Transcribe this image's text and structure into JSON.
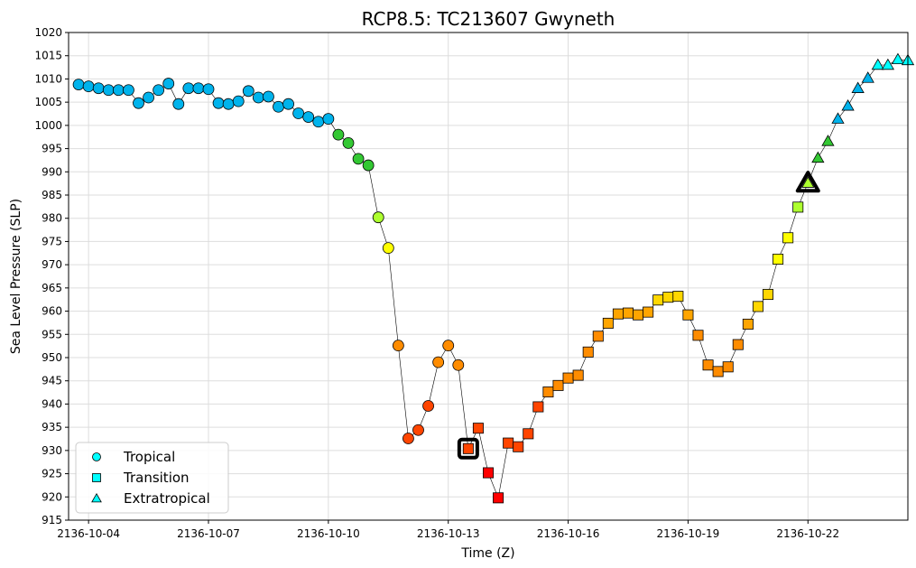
{
  "chart_data": {
    "type": "scatter",
    "title": "RCP8.5: TC213607 Gwyneth",
    "xlabel": "Time (Z)",
    "ylabel": "Sea Level Pressure (SLP)",
    "x_ticks": [
      "2136-10-04",
      "2136-10-07",
      "2136-10-10",
      "2136-10-13",
      "2136-10-16",
      "2136-10-19",
      "2136-10-22"
    ],
    "y_ticks": [
      915,
      920,
      925,
      930,
      935,
      940,
      945,
      950,
      955,
      960,
      965,
      970,
      975,
      980,
      985,
      990,
      995,
      1000,
      1005,
      1010,
      1015,
      1020
    ],
    "ylim": [
      915,
      1020
    ],
    "xlim_days": [
      "2136-10-03T12:00",
      "2136-10-24T12:00"
    ],
    "grid": true,
    "legend_position": "lower-left",
    "legend": [
      {
        "label": "Tropical",
        "marker": "circle"
      },
      {
        "label": "Transition",
        "marker": "square"
      },
      {
        "label": "Extratropical",
        "marker": "triangle"
      }
    ],
    "legend_color": "#00ffff",
    "line_color": "#000000",
    "points": [
      {
        "t": "2136-10-03T18:00",
        "slp": 1008.8,
        "type": "tropical",
        "color": "#00b3ec"
      },
      {
        "t": "2136-10-04T00:00",
        "slp": 1008.4,
        "type": "tropical",
        "color": "#00b3ec"
      },
      {
        "t": "2136-10-04T06:00",
        "slp": 1008.0,
        "type": "tropical",
        "color": "#00b3ec"
      },
      {
        "t": "2136-10-04T12:00",
        "slp": 1007.6,
        "type": "tropical",
        "color": "#00b3ec"
      },
      {
        "t": "2136-10-04T18:00",
        "slp": 1007.6,
        "type": "tropical",
        "color": "#00b3ec"
      },
      {
        "t": "2136-10-05T00:00",
        "slp": 1007.6,
        "type": "tropical",
        "color": "#00b3ec"
      },
      {
        "t": "2136-10-05T06:00",
        "slp": 1004.8,
        "type": "tropical",
        "color": "#00b3ec"
      },
      {
        "t": "2136-10-05T12:00",
        "slp": 1006.0,
        "type": "tropical",
        "color": "#00b3ec"
      },
      {
        "t": "2136-10-05T18:00",
        "slp": 1007.6,
        "type": "tropical",
        "color": "#00b3ec"
      },
      {
        "t": "2136-10-06T00:00",
        "slp": 1009.0,
        "type": "tropical",
        "color": "#00b3ec"
      },
      {
        "t": "2136-10-06T06:00",
        "slp": 1004.6,
        "type": "tropical",
        "color": "#00b3ec"
      },
      {
        "t": "2136-10-06T12:00",
        "slp": 1008.0,
        "type": "tropical",
        "color": "#00b3ec"
      },
      {
        "t": "2136-10-06T18:00",
        "slp": 1008.0,
        "type": "tropical",
        "color": "#00b3ec"
      },
      {
        "t": "2136-10-07T00:00",
        "slp": 1007.8,
        "type": "tropical",
        "color": "#00b3ec"
      },
      {
        "t": "2136-10-07T06:00",
        "slp": 1004.8,
        "type": "tropical",
        "color": "#00b3ec"
      },
      {
        "t": "2136-10-07T12:00",
        "slp": 1004.6,
        "type": "tropical",
        "color": "#00b3ec"
      },
      {
        "t": "2136-10-07T18:00",
        "slp": 1005.2,
        "type": "tropical",
        "color": "#00b3ec"
      },
      {
        "t": "2136-10-08T00:00",
        "slp": 1007.4,
        "type": "tropical",
        "color": "#00b3ec"
      },
      {
        "t": "2136-10-08T06:00",
        "slp": 1006.0,
        "type": "tropical",
        "color": "#00b3ec"
      },
      {
        "t": "2136-10-08T12:00",
        "slp": 1006.2,
        "type": "tropical",
        "color": "#00b3ec"
      },
      {
        "t": "2136-10-08T18:00",
        "slp": 1004.0,
        "type": "tropical",
        "color": "#00b3ec"
      },
      {
        "t": "2136-10-09T00:00",
        "slp": 1004.6,
        "type": "tropical",
        "color": "#00b3ec"
      },
      {
        "t": "2136-10-09T06:00",
        "slp": 1002.6,
        "type": "tropical",
        "color": "#00b3ec"
      },
      {
        "t": "2136-10-09T12:00",
        "slp": 1001.8,
        "type": "tropical",
        "color": "#00b3ec"
      },
      {
        "t": "2136-10-09T18:00",
        "slp": 1000.8,
        "type": "tropical",
        "color": "#00b3ec"
      },
      {
        "t": "2136-10-10T00:00",
        "slp": 1001.4,
        "type": "tropical",
        "color": "#00b3ec"
      },
      {
        "t": "2136-10-10T06:00",
        "slp": 998.0,
        "type": "tropical",
        "color": "#33c833"
      },
      {
        "t": "2136-10-10T12:00",
        "slp": 996.2,
        "type": "tropical",
        "color": "#33c833"
      },
      {
        "t": "2136-10-10T18:00",
        "slp": 992.8,
        "type": "tropical",
        "color": "#33c833"
      },
      {
        "t": "2136-10-11T00:00",
        "slp": 991.4,
        "type": "tropical",
        "color": "#33c833"
      },
      {
        "t": "2136-10-11T06:00",
        "slp": 980.2,
        "type": "tropical",
        "color": "#adff2f"
      },
      {
        "t": "2136-10-11T12:00",
        "slp": 973.6,
        "type": "tropical",
        "color": "#ffff00"
      },
      {
        "t": "2136-10-11T18:00",
        "slp": 952.6,
        "type": "tropical",
        "color": "#ff8c00"
      },
      {
        "t": "2136-10-12T00:00",
        "slp": 932.6,
        "type": "tropical",
        "color": "#ff4500"
      },
      {
        "t": "2136-10-12T06:00",
        "slp": 934.4,
        "type": "tropical",
        "color": "#ff4500"
      },
      {
        "t": "2136-10-12T12:00",
        "slp": 939.6,
        "type": "tropical",
        "color": "#ff4500"
      },
      {
        "t": "2136-10-12T18:00",
        "slp": 949.0,
        "type": "tropical",
        "color": "#ff8c00"
      },
      {
        "t": "2136-10-13T00:00",
        "slp": 952.6,
        "type": "tropical",
        "color": "#ff8c00"
      },
      {
        "t": "2136-10-13T06:00",
        "slp": 948.4,
        "type": "tropical",
        "color": "#ff8c00"
      },
      {
        "t": "2136-10-13T12:00",
        "slp": 930.4,
        "type": "transition",
        "color": "#ff4500",
        "highlight": true
      },
      {
        "t": "2136-10-13T18:00",
        "slp": 934.8,
        "type": "transition",
        "color": "#ff4500"
      },
      {
        "t": "2136-10-14T00:00",
        "slp": 925.2,
        "type": "transition",
        "color": "#ff0000"
      },
      {
        "t": "2136-10-14T06:00",
        "slp": 919.8,
        "type": "transition",
        "color": "#ff0000"
      },
      {
        "t": "2136-10-14T12:00",
        "slp": 931.6,
        "type": "transition",
        "color": "#ff4500"
      },
      {
        "t": "2136-10-14T18:00",
        "slp": 930.8,
        "type": "transition",
        "color": "#ff4500"
      },
      {
        "t": "2136-10-15T00:00",
        "slp": 933.6,
        "type": "transition",
        "color": "#ff4500"
      },
      {
        "t": "2136-10-15T06:00",
        "slp": 939.4,
        "type": "transition",
        "color": "#ff4500"
      },
      {
        "t": "2136-10-15T12:00",
        "slp": 942.6,
        "type": "transition",
        "color": "#ff8c00"
      },
      {
        "t": "2136-10-15T18:00",
        "slp": 944.0,
        "type": "transition",
        "color": "#ff8c00"
      },
      {
        "t": "2136-10-16T00:00",
        "slp": 945.6,
        "type": "transition",
        "color": "#ff8c00"
      },
      {
        "t": "2136-10-16T06:00",
        "slp": 946.2,
        "type": "transition",
        "color": "#ff8c00"
      },
      {
        "t": "2136-10-16T12:00",
        "slp": 951.2,
        "type": "transition",
        "color": "#ff8c00"
      },
      {
        "t": "2136-10-16T18:00",
        "slp": 954.6,
        "type": "transition",
        "color": "#ff8c00"
      },
      {
        "t": "2136-10-17T00:00",
        "slp": 957.4,
        "type": "transition",
        "color": "#ffa500"
      },
      {
        "t": "2136-10-17T06:00",
        "slp": 959.4,
        "type": "transition",
        "color": "#ffa500"
      },
      {
        "t": "2136-10-17T12:00",
        "slp": 959.6,
        "type": "transition",
        "color": "#ffa500"
      },
      {
        "t": "2136-10-17T18:00",
        "slp": 959.2,
        "type": "transition",
        "color": "#ffa500"
      },
      {
        "t": "2136-10-18T00:00",
        "slp": 959.8,
        "type": "transition",
        "color": "#ffa500"
      },
      {
        "t": "2136-10-18T06:00",
        "slp": 962.4,
        "type": "transition",
        "color": "#ffd700"
      },
      {
        "t": "2136-10-18T12:00",
        "slp": 963.0,
        "type": "transition",
        "color": "#ffd700"
      },
      {
        "t": "2136-10-18T18:00",
        "slp": 963.2,
        "type": "transition",
        "color": "#ffd700"
      },
      {
        "t": "2136-10-19T00:00",
        "slp": 959.2,
        "type": "transition",
        "color": "#ffa500"
      },
      {
        "t": "2136-10-19T06:00",
        "slp": 954.8,
        "type": "transition",
        "color": "#ff8c00"
      },
      {
        "t": "2136-10-19T12:00",
        "slp": 948.4,
        "type": "transition",
        "color": "#ff8c00"
      },
      {
        "t": "2136-10-19T18:00",
        "slp": 947.0,
        "type": "transition",
        "color": "#ff8c00"
      },
      {
        "t": "2136-10-20T00:00",
        "slp": 948.0,
        "type": "transition",
        "color": "#ff8c00"
      },
      {
        "t": "2136-10-20T06:00",
        "slp": 952.8,
        "type": "transition",
        "color": "#ff8c00"
      },
      {
        "t": "2136-10-20T12:00",
        "slp": 957.2,
        "type": "transition",
        "color": "#ffa500"
      },
      {
        "t": "2136-10-20T18:00",
        "slp": 961.0,
        "type": "transition",
        "color": "#ffd700"
      },
      {
        "t": "2136-10-21T00:00",
        "slp": 963.6,
        "type": "transition",
        "color": "#ffd700"
      },
      {
        "t": "2136-10-21T06:00",
        "slp": 971.2,
        "type": "transition",
        "color": "#ffff00"
      },
      {
        "t": "2136-10-21T12:00",
        "slp": 975.8,
        "type": "transition",
        "color": "#ffff00"
      },
      {
        "t": "2136-10-21T18:00",
        "slp": 982.4,
        "type": "transition",
        "color": "#adff2f"
      },
      {
        "t": "2136-10-22T00:00",
        "slp": 987.6,
        "type": "extratropical",
        "color": "#adff2f",
        "highlight": true
      },
      {
        "t": "2136-10-22T06:00",
        "slp": 993.0,
        "type": "extratropical",
        "color": "#33c833"
      },
      {
        "t": "2136-10-22T12:00",
        "slp": 996.6,
        "type": "extratropical",
        "color": "#33c833"
      },
      {
        "t": "2136-10-22T18:00",
        "slp": 1001.4,
        "type": "extratropical",
        "color": "#00b3ec"
      },
      {
        "t": "2136-10-23T00:00",
        "slp": 1004.2,
        "type": "extratropical",
        "color": "#00b3ec"
      },
      {
        "t": "2136-10-23T06:00",
        "slp": 1008.0,
        "type": "extratropical",
        "color": "#00b3ec"
      },
      {
        "t": "2136-10-23T12:00",
        "slp": 1010.2,
        "type": "extratropical",
        "color": "#00b3ec"
      },
      {
        "t": "2136-10-23T18:00",
        "slp": 1013.0,
        "type": "extratropical",
        "color": "#00ffff"
      },
      {
        "t": "2136-10-24T00:00",
        "slp": 1013.0,
        "type": "extratropical",
        "color": "#00ffff"
      },
      {
        "t": "2136-10-24T06:00",
        "slp": 1014.2,
        "type": "extratropical",
        "color": "#00ffff"
      },
      {
        "t": "2136-10-24T12:00",
        "slp": 1014.0,
        "type": "extratropical",
        "color": "#00ffff"
      }
    ]
  }
}
